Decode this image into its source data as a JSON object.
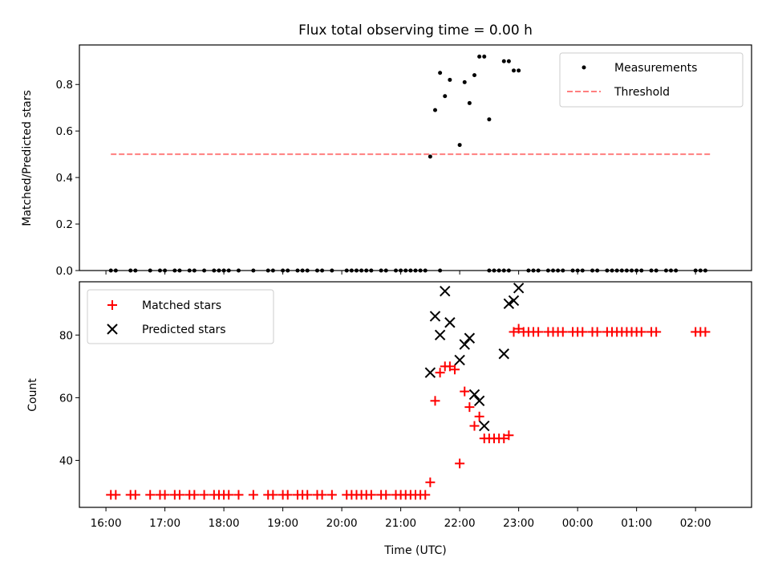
{
  "chart_data": [
    {
      "type": "scatter",
      "title": "Flux total observing time = 0.00 h",
      "xlabel": "",
      "ylabel": "Matched/Predicted stars",
      "ylim": [
        0,
        0.97
      ],
      "yticks": [
        "0.0",
        "0.2",
        "0.4",
        "0.6",
        "0.8"
      ],
      "legend_position": "top-right",
      "series": [
        {
          "name": "Measurements",
          "marker": "dot",
          "color": "#000000",
          "x": [
            "16:05",
            "16:10",
            "16:25",
            "16:30",
            "16:45",
            "16:55",
            "17:00",
            "17:10",
            "17:15",
            "17:25",
            "17:30",
            "17:40",
            "17:50",
            "17:55",
            "18:00",
            "18:05",
            "18:15",
            "18:30",
            "18:45",
            "18:50",
            "19:00",
            "19:05",
            "19:15",
            "19:20",
            "19:25",
            "19:35",
            "19:40",
            "19:50",
            "20:05",
            "20:10",
            "20:15",
            "20:20",
            "20:25",
            "20:30",
            "20:40",
            "20:45",
            "20:55",
            "21:00",
            "21:05",
            "21:10",
            "21:15",
            "21:20",
            "21:25",
            "21:40",
            "22:30",
            "22:35",
            "22:40",
            "22:45",
            "22:50",
            "23:10",
            "23:15",
            "23:20",
            "23:30",
            "23:35",
            "23:40",
            "23:45",
            "23:55",
            "24:00",
            "24:05",
            "24:15",
            "24:20",
            "24:30",
            "24:35",
            "24:40",
            "24:45",
            "24:50",
            "24:55",
            "25:00",
            "25:05",
            "25:15",
            "25:20",
            "25:30",
            "25:35",
            "25:40",
            "26:00",
            "26:05",
            "26:10"
          ],
          "y": [
            0,
            0,
            0,
            0,
            0,
            0,
            0,
            0,
            0,
            0,
            0,
            0,
            0,
            0,
            0,
            0,
            0,
            0,
            0,
            0,
            0,
            0,
            0,
            0,
            0,
            0,
            0,
            0,
            0,
            0,
            0,
            0,
            0,
            0,
            0,
            0,
            0,
            0,
            0,
            0,
            0,
            0,
            0,
            0,
            0,
            0,
            0,
            0,
            0,
            0,
            0,
            0,
            0,
            0,
            0,
            0,
            0,
            0,
            0,
            0,
            0,
            0,
            0,
            0,
            0,
            0,
            0,
            0,
            0,
            0,
            0,
            0,
            0,
            0,
            0,
            0,
            0
          ],
          "x2": [
            "21:30",
            "21:35",
            "21:40",
            "21:45",
            "21:50",
            "22:00",
            "22:05",
            "22:10",
            "22:15",
            "22:20",
            "22:25",
            "22:30",
            "22:45",
            "22:50",
            "22:55",
            "23:00"
          ],
          "y2": [
            0.49,
            0.69,
            0.85,
            0.75,
            0.82,
            0.54,
            0.81,
            0.72,
            0.84,
            0.92,
            0.92,
            0.65,
            0.9,
            0.9,
            0.86,
            0.86
          ]
        },
        {
          "name": "Threshold",
          "style": "dashed",
          "color": "#ff7f7f",
          "x": [
            "16:05",
            "26:15"
          ],
          "y": [
            0.5,
            0.5
          ]
        }
      ]
    },
    {
      "type": "scatter",
      "title": "",
      "xlabel": "Time (UTC)",
      "ylabel": "Count",
      "ylim": [
        25,
        97
      ],
      "yticks": [
        "40",
        "60",
        "80"
      ],
      "xticks": [
        "16:00",
        "17:00",
        "18:00",
        "19:00",
        "20:00",
        "21:00",
        "22:00",
        "23:00",
        "00:00",
        "01:00",
        "02:00"
      ],
      "legend_position": "top-left",
      "series": [
        {
          "name": "Matched stars",
          "marker": "plus",
          "color": "#ff0000",
          "x": [
            "16:05",
            "16:10",
            "16:25",
            "16:30",
            "16:45",
            "16:55",
            "17:00",
            "17:10",
            "17:15",
            "17:25",
            "17:30",
            "17:40",
            "17:50",
            "17:55",
            "18:00",
            "18:05",
            "18:15",
            "18:30",
            "18:45",
            "18:50",
            "19:00",
            "19:05",
            "19:15",
            "19:20",
            "19:25",
            "19:35",
            "19:40",
            "19:50",
            "20:05",
            "20:10",
            "20:15",
            "20:20",
            "20:25",
            "20:30",
            "20:40",
            "20:45",
            "20:55",
            "21:00",
            "21:05",
            "21:10",
            "21:15",
            "21:20",
            "21:25",
            "21:30",
            "21:35",
            "21:40",
            "21:45",
            "21:50",
            "21:55",
            "22:00",
            "22:05",
            "22:10",
            "22:15",
            "22:20",
            "22:25",
            "22:30",
            "22:35",
            "22:40",
            "22:45",
            "22:50",
            "22:55",
            "23:00",
            "23:05",
            "23:10",
            "23:15",
            "23:20",
            "23:30",
            "23:35",
            "23:40",
            "23:45",
            "23:55",
            "24:00",
            "24:05",
            "24:15",
            "24:20",
            "24:30",
            "24:35",
            "24:40",
            "24:45",
            "24:50",
            "24:55",
            "25:00",
            "25:05",
            "25:15",
            "25:20",
            "26:00",
            "26:05",
            "26:10"
          ],
          "y": [
            29,
            29,
            29,
            29,
            29,
            29,
            29,
            29,
            29,
            29,
            29,
            29,
            29,
            29,
            29,
            29,
            29,
            29,
            29,
            29,
            29,
            29,
            29,
            29,
            29,
            29,
            29,
            29,
            29,
            29,
            29,
            29,
            29,
            29,
            29,
            29,
            29,
            29,
            29,
            29,
            29,
            29,
            29,
            33,
            59,
            68,
            70,
            70,
            69,
            39,
            62,
            57,
            51,
            54,
            47,
            47,
            47,
            47,
            47,
            48,
            81,
            82,
            81,
            81,
            81,
            81,
            81,
            81,
            81,
            81,
            81,
            81,
            81,
            81,
            81,
            81,
            81,
            81,
            81,
            81,
            81,
            81,
            81,
            81,
            81,
            81,
            81,
            81
          ]
        },
        {
          "name": "Predicted stars",
          "marker": "x",
          "color": "#000000",
          "x": [
            "21:30",
            "21:35",
            "21:40",
            "21:45",
            "21:50",
            "22:00",
            "22:05",
            "22:10",
            "22:15",
            "22:20",
            "22:25",
            "22:45",
            "22:50",
            "22:55",
            "23:00"
          ],
          "y": [
            68,
            86,
            80,
            94,
            84,
            72,
            77,
            79,
            61,
            59,
            51,
            74,
            90,
            91,
            95
          ]
        }
      ]
    }
  ]
}
